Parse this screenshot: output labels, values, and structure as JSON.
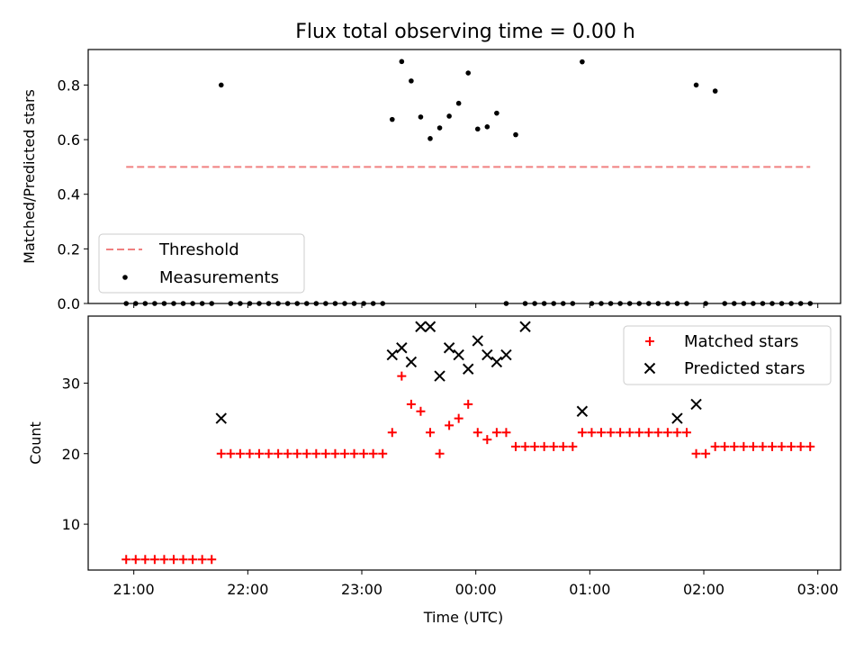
{
  "chart_data": [
    {
      "type": "scatter",
      "title": "Flux total observing time = 0.00 h",
      "ylabel": "Matched/Predicted stars",
      "ylim": [
        0,
        0.93
      ],
      "yticks": [
        0.0,
        0.2,
        0.4,
        0.6,
        0.8
      ],
      "ytick_labels": [
        "0.0",
        "0.2",
        "0.4",
        "0.6",
        "0.8"
      ],
      "xlim_hours": [
        20.6,
        27.2
      ],
      "legend_position": "lower-left",
      "threshold": {
        "name": "Threshold",
        "value": 0.5,
        "x_start": "20:56",
        "x_end": "26:56",
        "color": "#f08080"
      },
      "measurements": {
        "name": "Measurements",
        "color": "#000000",
        "x": [
          "20:56",
          "21:01",
          "21:06",
          "21:11",
          "21:16",
          "21:21",
          "21:26",
          "21:31",
          "21:36",
          "21:41",
          "21:46",
          "21:51",
          "21:56",
          "22:01",
          "22:06",
          "22:11",
          "22:16",
          "22:21",
          "22:26",
          "22:31",
          "22:36",
          "22:41",
          "22:46",
          "22:51",
          "22:56",
          "23:01",
          "23:06",
          "23:11",
          "23:16",
          "23:21",
          "23:26",
          "23:31",
          "23:36",
          "23:41",
          "23:46",
          "23:51",
          "23:56",
          "24:01",
          "24:06",
          "24:11",
          "24:16",
          "24:21",
          "24:26",
          "24:31",
          "24:36",
          "24:41",
          "24:46",
          "24:51",
          "24:56",
          "25:01",
          "25:06",
          "25:11",
          "25:16",
          "25:21",
          "25:26",
          "25:31",
          "25:36",
          "25:41",
          "25:46",
          "25:51",
          "25:56",
          "26:01",
          "26:06",
          "26:11",
          "26:16",
          "26:21",
          "26:26",
          "26:31",
          "26:36",
          "26:41",
          "26:46",
          "26:51",
          "26:56"
        ],
        "y": [
          0,
          0,
          0,
          0,
          0,
          0,
          0,
          0,
          0,
          0,
          0.8,
          0,
          0,
          0,
          0,
          0,
          0,
          0,
          0,
          0,
          0,
          0,
          0,
          0,
          0,
          0,
          0,
          0,
          0.674,
          0.886,
          0.815,
          0.683,
          0.604,
          0.643,
          0.686,
          0.733,
          0.844,
          0.639,
          0.647,
          0.697,
          0,
          0.618,
          0,
          0,
          0,
          0,
          0,
          0,
          0.885,
          0,
          0,
          0,
          0,
          0,
          0,
          0,
          0,
          0,
          0,
          0,
          0.8,
          0,
          0.778,
          0,
          0,
          0,
          0,
          0,
          0,
          0,
          0,
          0,
          0
        ]
      }
    },
    {
      "type": "scatter",
      "xlabel": "Time (UTC)",
      "ylabel": "Count",
      "ylim": [
        3.5,
        39.5
      ],
      "yticks": [
        10,
        20,
        30
      ],
      "ytick_labels": [
        "10",
        "20",
        "30"
      ],
      "xlim_hours": [
        20.6,
        27.2
      ],
      "xticks_hours": [
        21,
        22,
        23,
        24,
        25,
        26,
        27
      ],
      "xtick_labels": [
        "21:00",
        "22:00",
        "23:00",
        "00:00",
        "01:00",
        "02:00",
        "03:00"
      ],
      "legend_position": "upper-right",
      "matched": {
        "name": "Matched stars",
        "color": "#ff0000",
        "x": [
          "20:56",
          "21:01",
          "21:06",
          "21:11",
          "21:16",
          "21:21",
          "21:26",
          "21:31",
          "21:36",
          "21:41",
          "21:46",
          "21:51",
          "21:56",
          "22:01",
          "22:06",
          "22:11",
          "22:16",
          "22:21",
          "22:26",
          "22:31",
          "22:36",
          "22:41",
          "22:46",
          "22:51",
          "22:56",
          "23:01",
          "23:06",
          "23:11",
          "23:16",
          "23:21",
          "23:26",
          "23:31",
          "23:36",
          "23:41",
          "23:46",
          "23:51",
          "23:56",
          "24:01",
          "24:06",
          "24:11",
          "24:16",
          "24:21",
          "24:26",
          "24:31",
          "24:36",
          "24:41",
          "24:46",
          "24:51",
          "24:56",
          "25:01",
          "25:06",
          "25:11",
          "25:16",
          "25:21",
          "25:26",
          "25:31",
          "25:36",
          "25:41",
          "25:46",
          "25:51",
          "25:56",
          "26:01",
          "26:06",
          "26:11",
          "26:16",
          "26:21",
          "26:26",
          "26:31",
          "26:36",
          "26:41",
          "26:46",
          "26:51",
          "26:56"
        ],
        "y": [
          5,
          5,
          5,
          5,
          5,
          5,
          5,
          5,
          5,
          5,
          20,
          20,
          20,
          20,
          20,
          20,
          20,
          20,
          20,
          20,
          20,
          20,
          20,
          20,
          20,
          20,
          20,
          20,
          23,
          31,
          27,
          26,
          23,
          20,
          24,
          25,
          27,
          23,
          22,
          23,
          23,
          21,
          21,
          21,
          21,
          21,
          21,
          21,
          23,
          23,
          23,
          23,
          23,
          23,
          23,
          23,
          23,
          23,
          23,
          23,
          20,
          20,
          21,
          21,
          21,
          21,
          21,
          21,
          21,
          21,
          21,
          21,
          21
        ]
      },
      "predicted": {
        "name": "Predicted stars",
        "color": "#000000",
        "x": [
          "21:46",
          "23:16",
          "23:21",
          "23:26",
          "23:31",
          "23:36",
          "23:41",
          "23:46",
          "23:51",
          "23:56",
          "24:01",
          "24:06",
          "24:11",
          "24:16",
          "24:26",
          "24:56",
          "25:46",
          "25:56"
        ],
        "y": [
          25,
          34,
          35,
          33,
          38,
          38,
          31,
          35,
          34,
          32,
          36,
          34,
          33,
          34,
          38,
          26,
          25,
          27
        ]
      }
    }
  ]
}
